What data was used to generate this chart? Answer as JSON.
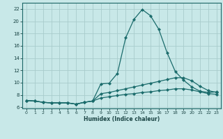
{
  "xlabel": "Humidex (Indice chaleur)",
  "bg_color": "#c8e8e8",
  "grid_color": "#a8cccc",
  "line_color": "#1a6b6b",
  "xlim": [
    -0.5,
    23.5
  ],
  "ylim": [
    5.8,
    23.0
  ],
  "xticks": [
    0,
    1,
    2,
    3,
    4,
    5,
    6,
    7,
    8,
    9,
    10,
    11,
    12,
    13,
    14,
    15,
    16,
    17,
    18,
    19,
    20,
    21,
    22,
    23
  ],
  "yticks": [
    6,
    8,
    10,
    12,
    14,
    16,
    18,
    20,
    22
  ],
  "series": [
    {
      "x": [
        0,
        1,
        2,
        3,
        4,
        5,
        6,
        7,
        8,
        9,
        10,
        11,
        12,
        13,
        14,
        15,
        16,
        17,
        18,
        19,
        20,
        21,
        22,
        23
      ],
      "y": [
        7.1,
        7.0,
        6.8,
        6.7,
        6.7,
        6.7,
        6.5,
        6.8,
        7.0,
        9.8,
        9.9,
        11.5,
        17.3,
        20.3,
        21.9,
        20.9,
        18.7,
        14.9,
        11.8,
        10.4,
        9.3,
        8.6,
        8.4,
        8.5
      ]
    },
    {
      "x": [
        0,
        1,
        2,
        3,
        4,
        5,
        6,
        7,
        8,
        9,
        10,
        11,
        12,
        13,
        14,
        15,
        16,
        17,
        18,
        19,
        20,
        21,
        22,
        23
      ],
      "y": [
        7.1,
        7.0,
        6.8,
        6.7,
        6.7,
        6.7,
        6.5,
        6.8,
        7.0,
        8.2,
        8.4,
        8.7,
        9.0,
        9.3,
        9.6,
        9.9,
        10.2,
        10.5,
        10.8,
        10.8,
        10.3,
        9.4,
        8.7,
        8.4
      ]
    },
    {
      "x": [
        0,
        1,
        2,
        3,
        4,
        5,
        6,
        7,
        8,
        9,
        10,
        11,
        12,
        13,
        14,
        15,
        16,
        17,
        18,
        19,
        20,
        21,
        22,
        23
      ],
      "y": [
        7.1,
        7.0,
        6.8,
        6.7,
        6.7,
        6.7,
        6.5,
        6.8,
        7.0,
        7.5,
        7.7,
        7.9,
        8.1,
        8.2,
        8.4,
        8.5,
        8.7,
        8.8,
        9.0,
        9.0,
        8.8,
        8.5,
        8.2,
        8.1
      ]
    }
  ]
}
